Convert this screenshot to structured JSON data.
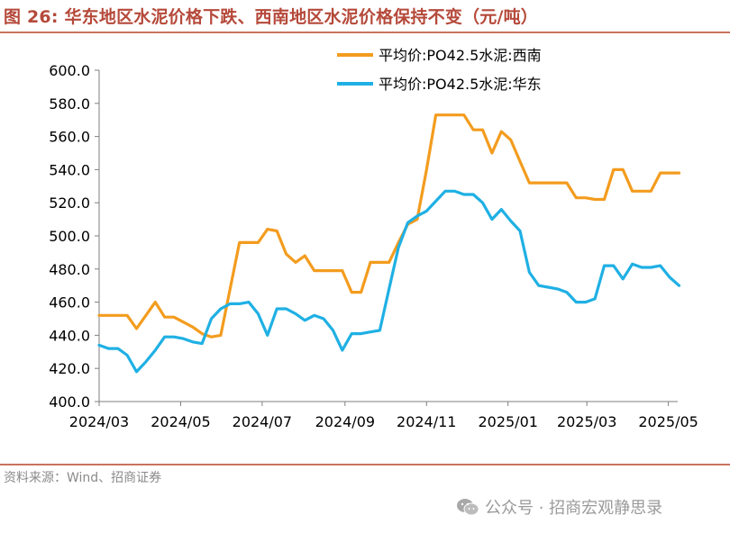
{
  "figure": {
    "title": "图 26:  华东地区水泥价格下跌、西南地区水泥价格保持不变（元/吨）",
    "source": "资料来源：Wind、招商证券",
    "watermark": "公众号 · 招商宏观静思录",
    "watermark_icon": "wechat-icon"
  },
  "chart_data": {
    "type": "line",
    "title": "图 26:  华东地区水泥价格下跌、西南地区水泥价格保持不变（元/吨）",
    "xlabel": "",
    "ylabel": "",
    "ylim": [
      400,
      600
    ],
    "yticks": [
      400,
      420,
      440,
      460,
      480,
      500,
      520,
      540,
      560,
      580,
      600
    ],
    "ytick_labels": [
      "400.0",
      "420.0",
      "440.0",
      "460.0",
      "480.0",
      "500.0",
      "520.0",
      "540.0",
      "560.0",
      "580.0",
      "600.0"
    ],
    "xlim": [
      "2024-03-01",
      "2025-05-08"
    ],
    "xticks": [
      "2024-03-01",
      "2024-05-01",
      "2024-07-01",
      "2024-09-01",
      "2024-11-01",
      "2025-01-01",
      "2025-03-01",
      "2025-05-01"
    ],
    "xtick_labels": [
      "2024/03",
      "2024/05",
      "2024/07",
      "2024/09",
      "2024/11",
      "2025/01",
      "2025/03",
      "2025/05"
    ],
    "grid": false,
    "legend_position": "top-right",
    "series": [
      {
        "name": "平均价:PO42.5水泥:西南",
        "color": "#f39c1e",
        "points": [
          [
            "2024-03-01",
            452
          ],
          [
            "2024-03-08",
            452
          ],
          [
            "2024-03-15",
            452
          ],
          [
            "2024-03-22",
            452
          ],
          [
            "2024-03-29",
            444
          ],
          [
            "2024-04-05",
            452
          ],
          [
            "2024-04-12",
            460
          ],
          [
            "2024-04-19",
            451
          ],
          [
            "2024-04-26",
            451
          ],
          [
            "2024-05-03",
            448
          ],
          [
            "2024-05-10",
            445
          ],
          [
            "2024-05-17",
            441
          ],
          [
            "2024-05-24",
            439
          ],
          [
            "2024-05-31",
            440
          ],
          [
            "2024-06-07",
            468
          ],
          [
            "2024-06-14",
            496
          ],
          [
            "2024-06-21",
            496
          ],
          [
            "2024-06-28",
            496
          ],
          [
            "2024-07-05",
            504
          ],
          [
            "2024-07-12",
            503
          ],
          [
            "2024-07-19",
            489
          ],
          [
            "2024-07-26",
            484
          ],
          [
            "2024-08-02",
            488
          ],
          [
            "2024-08-09",
            479
          ],
          [
            "2024-08-16",
            479
          ],
          [
            "2024-08-23",
            479
          ],
          [
            "2024-08-30",
            479
          ],
          [
            "2024-09-06",
            466
          ],
          [
            "2024-09-13",
            466
          ],
          [
            "2024-09-20",
            484
          ],
          [
            "2024-09-27",
            484
          ],
          [
            "2024-10-04",
            484
          ],
          [
            "2024-10-11",
            496
          ],
          [
            "2024-10-18",
            507
          ],
          [
            "2024-10-25",
            510
          ],
          [
            "2024-11-01",
            540
          ],
          [
            "2024-11-08",
            573
          ],
          [
            "2024-11-15",
            573
          ],
          [
            "2024-11-22",
            573
          ],
          [
            "2024-11-29",
            573
          ],
          [
            "2024-12-06",
            564
          ],
          [
            "2024-12-13",
            564
          ],
          [
            "2024-12-20",
            550
          ],
          [
            "2024-12-27",
            563
          ],
          [
            "2025-01-03",
            558
          ],
          [
            "2025-01-10",
            545
          ],
          [
            "2025-01-17",
            532
          ],
          [
            "2025-01-24",
            532
          ],
          [
            "2025-01-31",
            532
          ],
          [
            "2025-02-07",
            532
          ],
          [
            "2025-02-14",
            532
          ],
          [
            "2025-02-21",
            523
          ],
          [
            "2025-02-28",
            523
          ],
          [
            "2025-03-07",
            522
          ],
          [
            "2025-03-14",
            522
          ],
          [
            "2025-03-21",
            540
          ],
          [
            "2025-03-28",
            540
          ],
          [
            "2025-04-04",
            527
          ],
          [
            "2025-04-11",
            527
          ],
          [
            "2025-04-18",
            527
          ],
          [
            "2025-04-25",
            538
          ],
          [
            "2025-05-02",
            538
          ],
          [
            "2025-05-09",
            538
          ]
        ]
      },
      {
        "name": "平均价:PO42.5水泥:华东",
        "color": "#1fb0e4",
        "points": [
          [
            "2024-03-01",
            434
          ],
          [
            "2024-03-08",
            432
          ],
          [
            "2024-03-15",
            432
          ],
          [
            "2024-03-22",
            428
          ],
          [
            "2024-03-29",
            418
          ],
          [
            "2024-04-05",
            424
          ],
          [
            "2024-04-12",
            431
          ],
          [
            "2024-04-19",
            439
          ],
          [
            "2024-04-26",
            439
          ],
          [
            "2024-05-03",
            438
          ],
          [
            "2024-05-10",
            436
          ],
          [
            "2024-05-17",
            435
          ],
          [
            "2024-05-24",
            450
          ],
          [
            "2024-05-31",
            456
          ],
          [
            "2024-06-07",
            459
          ],
          [
            "2024-06-14",
            459
          ],
          [
            "2024-06-21",
            460
          ],
          [
            "2024-06-28",
            453
          ],
          [
            "2024-07-05",
            440
          ],
          [
            "2024-07-12",
            456
          ],
          [
            "2024-07-19",
            456
          ],
          [
            "2024-07-26",
            453
          ],
          [
            "2024-08-02",
            449
          ],
          [
            "2024-08-09",
            452
          ],
          [
            "2024-08-16",
            450
          ],
          [
            "2024-08-23",
            443
          ],
          [
            "2024-08-30",
            431
          ],
          [
            "2024-09-06",
            441
          ],
          [
            "2024-09-13",
            441
          ],
          [
            "2024-09-20",
            442
          ],
          [
            "2024-09-27",
            443
          ],
          [
            "2024-10-04",
            468
          ],
          [
            "2024-10-11",
            493
          ],
          [
            "2024-10-18",
            508
          ],
          [
            "2024-10-25",
            512
          ],
          [
            "2024-11-01",
            515
          ],
          [
            "2024-11-08",
            521
          ],
          [
            "2024-11-15",
            527
          ],
          [
            "2024-11-22",
            527
          ],
          [
            "2024-11-29",
            525
          ],
          [
            "2024-12-06",
            525
          ],
          [
            "2024-12-13",
            520
          ],
          [
            "2024-12-20",
            510
          ],
          [
            "2024-12-27",
            516
          ],
          [
            "2025-01-03",
            509
          ],
          [
            "2025-01-10",
            503
          ],
          [
            "2025-01-17",
            478
          ],
          [
            "2025-01-24",
            470
          ],
          [
            "2025-01-31",
            469
          ],
          [
            "2025-02-07",
            468
          ],
          [
            "2025-02-14",
            466
          ],
          [
            "2025-02-21",
            460
          ],
          [
            "2025-02-28",
            460
          ],
          [
            "2025-03-07",
            462
          ],
          [
            "2025-03-14",
            482
          ],
          [
            "2025-03-21",
            482
          ],
          [
            "2025-03-28",
            474
          ],
          [
            "2025-04-04",
            483
          ],
          [
            "2025-04-11",
            481
          ],
          [
            "2025-04-18",
            481
          ],
          [
            "2025-04-25",
            482
          ],
          [
            "2025-05-02",
            475
          ],
          [
            "2025-05-09",
            470
          ]
        ]
      }
    ]
  }
}
